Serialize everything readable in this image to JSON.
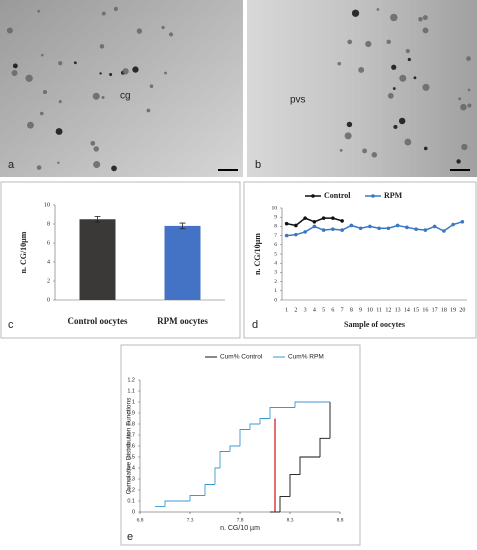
{
  "micrographs": [
    {
      "label": "a",
      "annotation": "cg"
    },
    {
      "label": "b",
      "annotation": "pvs"
    }
  ],
  "chart_data": [
    {
      "type": "bar",
      "panel_label": "c",
      "y_label": "n. CG/10µm",
      "categories": [
        "Control oocytes",
        "RPM oocytes"
      ],
      "values": [
        8.5,
        7.8
      ],
      "errors": [
        0.3,
        0.3
      ],
      "colors": [
        "#3b3838",
        "#4472c4"
      ],
      "ylim": [
        0,
        10
      ],
      "yticks": [
        0,
        2,
        4,
        6,
        8,
        10
      ]
    },
    {
      "type": "line",
      "panel_label": "d",
      "y_label": "n. CG/10µm",
      "x_label": "Sample of oocytes",
      "categories": [
        1,
        2,
        3,
        4,
        5,
        6,
        7,
        8,
        9,
        10,
        11,
        12,
        13,
        14,
        15,
        16,
        17,
        18,
        19,
        20
      ],
      "series": [
        {
          "name": "Control",
          "color": "#111111",
          "values": [
            8.3,
            8.1,
            8.9,
            8.5,
            8.9,
            8.9,
            8.6,
            null,
            null,
            null,
            null,
            null,
            null,
            null,
            null,
            null,
            null,
            null,
            null,
            null
          ]
        },
        {
          "name": "RPM",
          "color": "#3a78c4",
          "values": [
            7.0,
            7.1,
            7.4,
            8.0,
            7.6,
            7.7,
            7.6,
            8.1,
            7.8,
            8.0,
            7.8,
            7.8,
            8.1,
            7.9,
            7.7,
            7.6,
            8.0,
            7.5,
            8.2,
            8.5
          ]
        }
      ],
      "ylim": [
        0,
        10
      ],
      "yticks": [
        0,
        1,
        2,
        3,
        4,
        5,
        6,
        7,
        8,
        9,
        10
      ],
      "legend": "top"
    },
    {
      "type": "step",
      "panel_label": "e",
      "y_label": "Cumulative Distribution Functions",
      "x_label": "n. CG/10 µm",
      "series": [
        {
          "name": "Cum% Control",
          "color": "#111111",
          "x": [
            8.1,
            8.2,
            8.3,
            8.4,
            8.6,
            8.7
          ],
          "values": [
            0,
            0.14,
            0.34,
            0.5,
            0.67,
            1
          ]
        },
        {
          "name": "Cum% RPM",
          "color": "#3a9ad0",
          "x": [
            6.95,
            7.05,
            7.3,
            7.45,
            7.55,
            7.6,
            7.7,
            7.8,
            7.9,
            8.0,
            8.1,
            8.35
          ],
          "values": [
            0.05,
            0.1,
            0.15,
            0.25,
            0.4,
            0.55,
            0.6,
            0.75,
            0.8,
            0.85,
            0.95,
            1
          ]
        }
      ],
      "xlim": [
        6.8,
        8.8
      ],
      "xticks": [
        6.8,
        7.3,
        7.8,
        8.3,
        8.8
      ],
      "ylim": [
        0,
        1.2
      ],
      "yticks": [
        0,
        0.1,
        0.2,
        0.3,
        0.4,
        0.5,
        0.6,
        0.7,
        0.8,
        0.9,
        1,
        1.1,
        1.2
      ],
      "reference_line": {
        "x": 8.15,
        "y": [
          0,
          0.85
        ],
        "color": "#d01010"
      }
    }
  ]
}
